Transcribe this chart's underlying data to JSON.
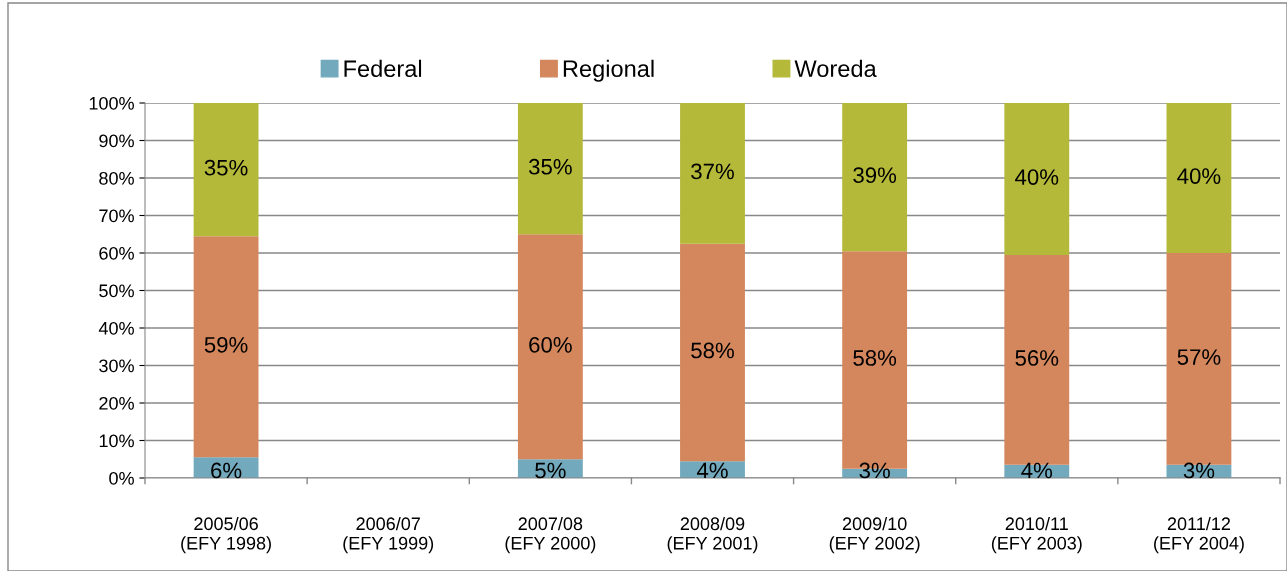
{
  "chart_data": {
    "type": "bar",
    "stacked": true,
    "grid": "y",
    "legend": "top",
    "categories": [
      "2005/06\n(EFY 1998)",
      "2006/07\n(EFY 1999)",
      "2007/08\n(EFY 2000)",
      "2008/09\n(EFY 2001)",
      "2009/10\n(EFY 2002)",
      "2010/11\n(EFY 2003)",
      "2011/12\n(EFY 2004)"
    ],
    "series": [
      {
        "name": "Federal",
        "color": "#72a9bd",
        "values": [
          5.5,
          null,
          5,
          4.5,
          2.5,
          3.5,
          3.5
        ],
        "value_labels": [
          "6%",
          null,
          "5%",
          "4%",
          "3%",
          "4%",
          "3%"
        ]
      },
      {
        "name": "Regional",
        "color": "#d4875c",
        "values": [
          59,
          null,
          60,
          58,
          58,
          56,
          56.5
        ],
        "value_labels": [
          "59%",
          null,
          "60%",
          "58%",
          "58%",
          "56%",
          "57%"
        ]
      },
      {
        "name": "Woreda",
        "color": "#b5b939",
        "values": [
          35.5,
          null,
          35,
          37.5,
          39.5,
          40.5,
          40
        ],
        "value_labels": [
          "35%",
          null,
          "35%",
          "37%",
          "39%",
          "40%",
          "40%"
        ]
      }
    ],
    "ylim": [
      0,
      100
    ],
    "yticks": [
      {
        "value": 0,
        "label": "0%"
      },
      {
        "value": 10,
        "label": "10%"
      },
      {
        "value": 20,
        "label": "20%"
      },
      {
        "value": 30,
        "label": "30%"
      },
      {
        "value": 40,
        "label": "40%"
      },
      {
        "value": 50,
        "label": "50%"
      },
      {
        "value": 60,
        "label": "60%"
      },
      {
        "value": 70,
        "label": "70%"
      },
      {
        "value": 80,
        "label": "80%"
      },
      {
        "value": 90,
        "label": "90%"
      },
      {
        "value": 100,
        "label": "100%"
      }
    ]
  }
}
